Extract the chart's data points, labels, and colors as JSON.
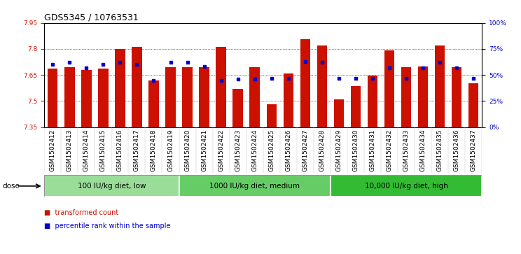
{
  "title": "GDS5345 / 10763531",
  "categories": [
    "GSM1502412",
    "GSM1502413",
    "GSM1502414",
    "GSM1502415",
    "GSM1502416",
    "GSM1502417",
    "GSM1502418",
    "GSM1502419",
    "GSM1502420",
    "GSM1502421",
    "GSM1502422",
    "GSM1502423",
    "GSM1502424",
    "GSM1502425",
    "GSM1502426",
    "GSM1502427",
    "GSM1502428",
    "GSM1502429",
    "GSM1502430",
    "GSM1502431",
    "GSM1502432",
    "GSM1502433",
    "GSM1502434",
    "GSM1502435",
    "GSM1502436",
    "GSM1502437"
  ],
  "bar_values": [
    7.685,
    7.695,
    7.68,
    7.685,
    7.8,
    7.81,
    7.62,
    7.695,
    7.695,
    7.695,
    7.81,
    7.57,
    7.695,
    7.48,
    7.66,
    7.855,
    7.82,
    7.51,
    7.585,
    7.645,
    7.79,
    7.695,
    7.7,
    7.82,
    7.695,
    7.6
  ],
  "percentile_values": [
    60,
    62,
    57,
    60,
    62,
    60,
    45,
    62,
    62,
    58,
    45,
    46,
    46,
    47,
    47,
    63,
    62,
    47,
    47,
    47,
    57,
    47,
    57,
    62,
    57,
    47
  ],
  "y_min": 7.35,
  "y_max": 7.95,
  "y_ticks": [
    7.35,
    7.5,
    7.65,
    7.8,
    7.95
  ],
  "right_y_ticks": [
    0,
    25,
    50,
    75,
    100
  ],
  "right_y_labels": [
    "0%",
    "25%",
    "50%",
    "75%",
    "100%"
  ],
  "bar_color": "#cc1100",
  "dot_color": "#0000cc",
  "group_labels": [
    "100 IU/kg diet, low",
    "1000 IU/kg diet, medium",
    "10,000 IU/kg diet, high"
  ],
  "group_ranges": [
    [
      0,
      8
    ],
    [
      8,
      17
    ],
    [
      17,
      26
    ]
  ],
  "group_colors": [
    "#99dd99",
    "#66cc66",
    "#33bb33"
  ],
  "dose_label": "dose",
  "legend_items": [
    "transformed count",
    "percentile rank within the sample"
  ],
  "legend_colors": [
    "#cc1100",
    "#0000cc"
  ],
  "grid_lines": [
    7.5,
    7.65,
    7.8
  ],
  "title_fontsize": 9,
  "tick_fontsize": 6.5,
  "label_fontsize": 7.5,
  "group_fontsize": 7.5
}
